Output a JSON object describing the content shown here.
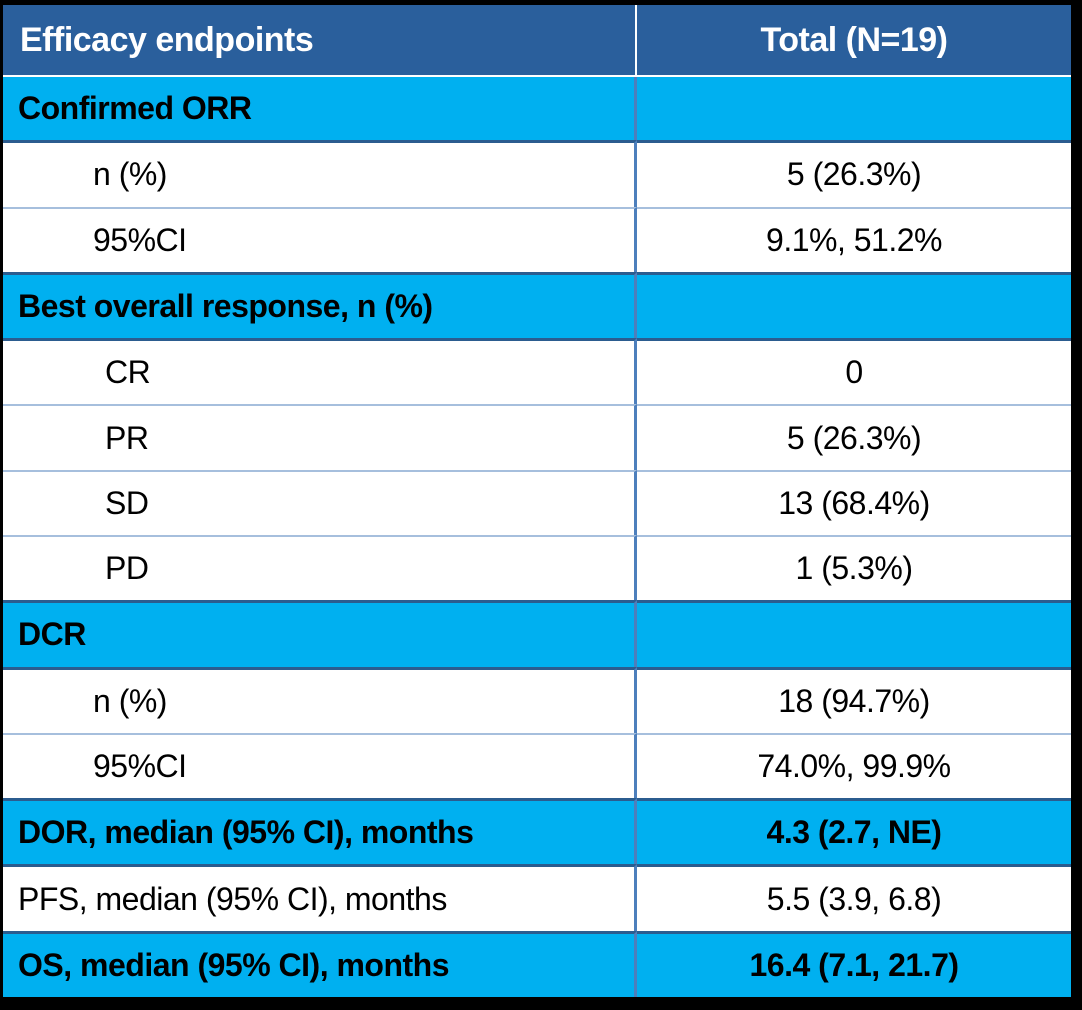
{
  "table": {
    "title": "Efficacy endpoints table",
    "header": {
      "col1": "Efficacy endpoints",
      "col2": "Total (N=19)"
    },
    "rows": [
      {
        "label": "Confirmed ORR",
        "value": "",
        "style": "section",
        "indent": 0
      },
      {
        "label": "n (%)",
        "value": "5 (26.3%)",
        "style": "plain",
        "indent": 1
      },
      {
        "label": "95%CI",
        "value": "9.1%, 51.2%",
        "style": "plain",
        "indent": 1
      },
      {
        "label": "Best overall response, n (%)",
        "value": "",
        "style": "section",
        "indent": 0
      },
      {
        "label": "CR",
        "value": "0",
        "style": "plain",
        "indent": 2
      },
      {
        "label": "PR",
        "value": "5 (26.3%)",
        "style": "plain",
        "indent": 2
      },
      {
        "label": "SD",
        "value": "13 (68.4%)",
        "style": "plain",
        "indent": 2
      },
      {
        "label": "PD",
        "value": "1 (5.3%)",
        "style": "plain",
        "indent": 2
      },
      {
        "label": "DCR",
        "value": "",
        "style": "section",
        "indent": 0
      },
      {
        "label": "n (%)",
        "value": "18 (94.7%)",
        "style": "plain",
        "indent": 1
      },
      {
        "label": "95%CI",
        "value": "74.0%, 99.9%",
        "style": "plain",
        "indent": 1
      },
      {
        "label": "DOR, median (95% CI), months",
        "value": "4.3 (2.7, NE)",
        "style": "section",
        "indent": 0
      },
      {
        "label": "PFS, median (95% CI), months",
        "value": "5.5 (3.9, 6.8)",
        "style": "plain",
        "indent": 0
      },
      {
        "label": "OS, median (95% CI), months",
        "value": "16.4 (7.1, 21.7)",
        "style": "section",
        "indent": 0
      }
    ],
    "colors": {
      "header_background": "#2a5f9c",
      "section_background": "#00b0f0",
      "plain_background": "#ffffff",
      "divider_blue": "#4d7fbc",
      "separator_light": "#a6bfdd",
      "separator_dark": "#2b5c8f",
      "frame_black": "#000000",
      "header_text": "#ffffff",
      "body_text": "#000000"
    }
  }
}
